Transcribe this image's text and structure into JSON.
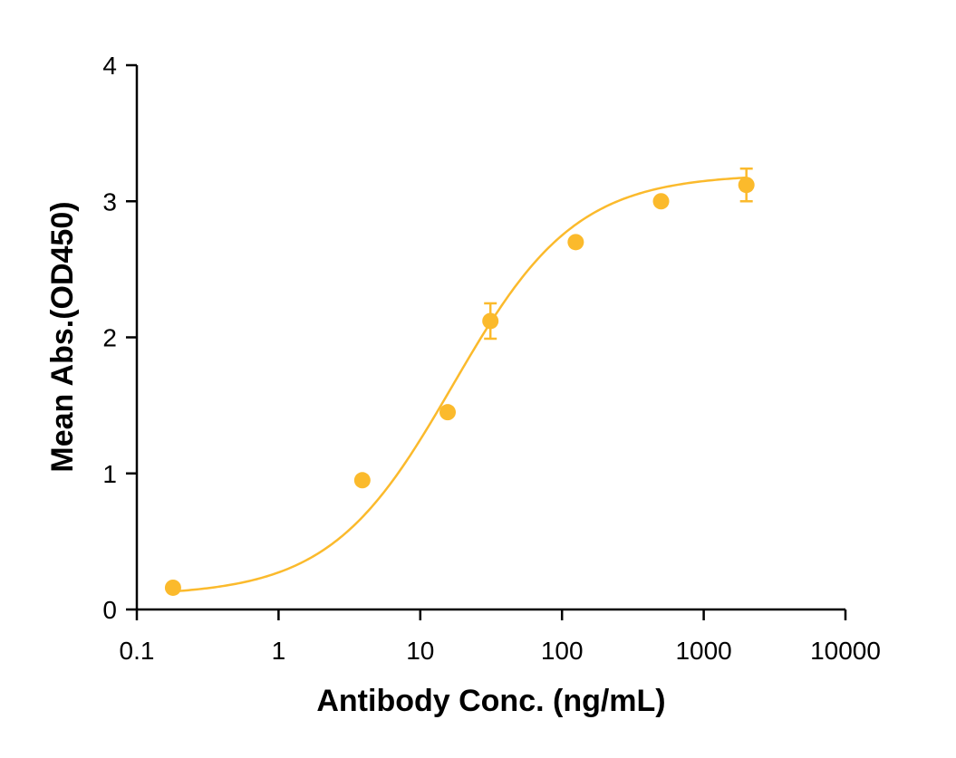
{
  "chart_data": {
    "type": "scatter",
    "xlabel": "Antibody Conc. (ng/mL)",
    "ylabel": "Mean Abs.(OD450)",
    "x_scale": "log",
    "xlim": [
      0.1,
      10000
    ],
    "ylim": [
      0,
      4
    ],
    "x_ticks": [
      0.1,
      1,
      10,
      100,
      1000,
      10000
    ],
    "x_tick_labels": [
      "0.1",
      "1",
      "10",
      "100",
      "1000",
      "10000"
    ],
    "y_ticks": [
      0,
      1,
      2,
      3,
      4
    ],
    "y_tick_labels": [
      "0",
      "1",
      "2",
      "3",
      "4"
    ],
    "grid": false,
    "color": "#FBBA2C",
    "series": [
      {
        "points": [
          {
            "x": 0.18,
            "y": 0.16,
            "err": 0
          },
          {
            "x": 3.9,
            "y": 0.95,
            "err": 0
          },
          {
            "x": 15.6,
            "y": 1.45,
            "err": 0
          },
          {
            "x": 31.25,
            "y": 2.12,
            "err": 0.13
          },
          {
            "x": 125,
            "y": 2.7,
            "err": 0
          },
          {
            "x": 500,
            "y": 3.0,
            "err": 0
          },
          {
            "x": 2000,
            "y": 3.12,
            "err": 0.12
          }
        ],
        "fit": {
          "model": "4PL",
          "bottom": 0.1,
          "top": 3.2,
          "ec50": 17.0,
          "hill": 1.0
        }
      }
    ]
  }
}
